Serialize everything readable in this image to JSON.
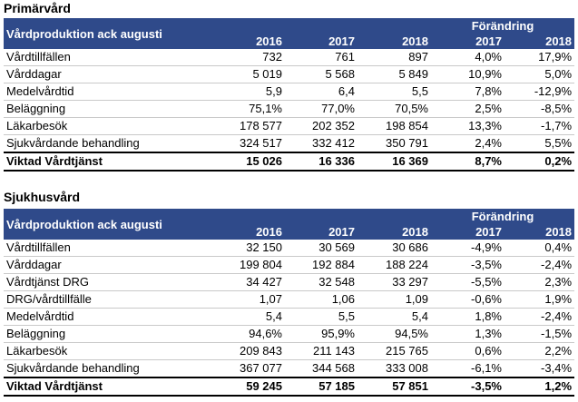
{
  "primary": {
    "title": "Primärvård",
    "header_label": "Vårdproduktion ack augusti",
    "change_label": "Förändring",
    "years": [
      "2016",
      "2017",
      "2018"
    ],
    "change_years": [
      "2017",
      "2018"
    ],
    "rows": [
      {
        "label": "Vårdtillfällen",
        "v2016": "732",
        "v2017": "761",
        "v2018": "897",
        "c2017": "4,0%",
        "c2018": "17,9%"
      },
      {
        "label": "Vårddagar",
        "v2016": "5 019",
        "v2017": "5 568",
        "v2018": "5 849",
        "c2017": "10,9%",
        "c2018": "5,0%"
      },
      {
        "label": "Medelvårdtid",
        "v2016": "5,9",
        "v2017": "6,4",
        "v2018": "5,5",
        "c2017": "7,8%",
        "c2018": "-12,9%"
      },
      {
        "label": "Beläggning",
        "v2016": "75,1%",
        "v2017": "77,0%",
        "v2018": "70,5%",
        "c2017": "2,5%",
        "c2018": "-8,5%"
      },
      {
        "label": "Läkarbesök",
        "v2016": "178 577",
        "v2017": "202 352",
        "v2018": "198 854",
        "c2017": "13,3%",
        "c2018": "-1,7%"
      },
      {
        "label": "Sjukvårdande behandling",
        "v2016": "324 517",
        "v2017": "332 412",
        "v2018": "350 791",
        "c2017": "2,4%",
        "c2018": "5,5%"
      }
    ],
    "total": {
      "label": "Viktad Vårdtjänst",
      "v2016": "15 026",
      "v2017": "16 336",
      "v2018": "16 369",
      "c2017": "8,7%",
      "c2018": "0,2%"
    }
  },
  "hospital": {
    "title": "Sjukhusvård",
    "header_label": "Vårdproduktion ack augusti",
    "change_label": "Förändring",
    "years": [
      "2016",
      "2017",
      "2018"
    ],
    "change_years": [
      "2017",
      "2018"
    ],
    "rows": [
      {
        "label": "Vårdtillfällen",
        "v2016": "32 150",
        "v2017": "30 569",
        "v2018": "30 686",
        "c2017": "-4,9%",
        "c2018": "0,4%"
      },
      {
        "label": "Vårddagar",
        "v2016": "199 804",
        "v2017": "192 884",
        "v2018": "188 224",
        "c2017": "-3,5%",
        "c2018": "-2,4%"
      },
      {
        "label": "Vårdtjänst DRG",
        "v2016": "34 427",
        "v2017": "32 548",
        "v2018": "33 297",
        "c2017": "-5,5%",
        "c2018": "2,3%"
      },
      {
        "label": "DRG/vårdtillfälle",
        "v2016": "1,07",
        "v2017": "1,06",
        "v2018": "1,09",
        "c2017": "-0,6%",
        "c2018": "1,9%"
      },
      {
        "label": "Medelvårdtid",
        "v2016": "5,4",
        "v2017": "5,5",
        "v2018": "5,4",
        "c2017": "1,8%",
        "c2018": "-2,4%"
      },
      {
        "label": "Beläggning",
        "v2016": "94,6%",
        "v2017": "95,9%",
        "v2018": "94,5%",
        "c2017": "1,3%",
        "c2018": "-1,5%"
      },
      {
        "label": "Läkarbesök",
        "v2016": "209 843",
        "v2017": "211 143",
        "v2018": "215 765",
        "c2017": "0,6%",
        "c2018": "2,2%"
      },
      {
        "label": "Sjukvårdande behandling",
        "v2016": "367 077",
        "v2017": "344 568",
        "v2018": "333 008",
        "c2017": "-6,1%",
        "c2018": "-3,4%"
      }
    ],
    "total": {
      "label": "Viktad Vårdtjänst",
      "v2016": "59 245",
      "v2017": "57 185",
      "v2018": "57 851",
      "c2017": "-3,5%",
      "c2018": "1,2%"
    }
  },
  "colors": {
    "header_bg": "#2f4a8a",
    "header_text": "#ffffff"
  }
}
